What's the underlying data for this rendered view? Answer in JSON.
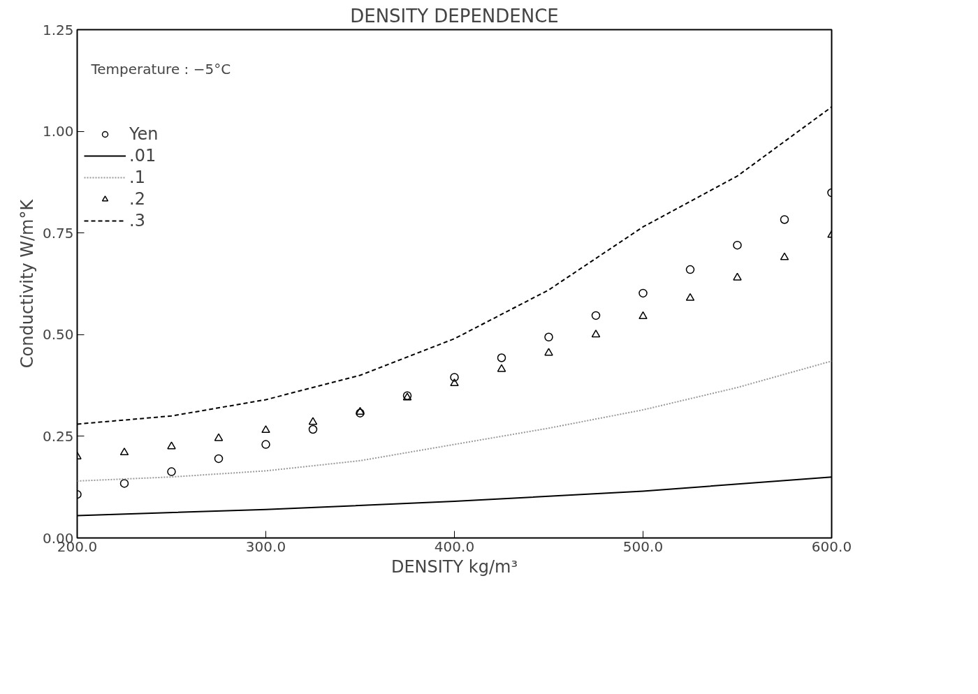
{
  "chart_data": {
    "type": "line",
    "title": "DENSITY DEPENDENCE",
    "xlabel": "DENSITY kg/m³",
    "ylabel": "Conductivity W/m°K",
    "annotations": [
      "Temperature : −5°C"
    ],
    "xlim": [
      200,
      600
    ],
    "ylim": [
      0,
      1.25
    ],
    "xticks": [
      {
        "value": 200,
        "label": "200.0"
      },
      {
        "value": 300,
        "label": "300.0"
      },
      {
        "value": 400,
        "label": "400.0"
      },
      {
        "value": 500,
        "label": "500.0"
      },
      {
        "value": 600,
        "label": "600.0"
      }
    ],
    "yticks": [
      {
        "value": 0,
        "label": "0.00"
      },
      {
        "value": 0.25,
        "label": "0.25"
      },
      {
        "value": 0.5,
        "label": "0.50"
      },
      {
        "value": 0.75,
        "label": "0.75"
      },
      {
        "value": 1,
        "label": "1.00"
      },
      {
        "value": 1.25,
        "label": "1.25"
      }
    ],
    "grid": false,
    "legend": "top left",
    "series": [
      {
        "name": "Yen",
        "type": "scatter",
        "marker": "circle",
        "color": "#000000",
        "x": [
          200,
          225,
          250,
          275,
          300,
          325,
          350,
          375,
          400,
          425,
          450,
          475,
          500,
          525,
          550,
          575,
          600
        ],
        "values": [
          0.107,
          0.134,
          0.163,
          0.195,
          0.23,
          0.267,
          0.307,
          0.35,
          0.395,
          0.443,
          0.494,
          0.547,
          0.602,
          0.66,
          0.72,
          0.783,
          0.849
        ]
      },
      {
        "name": ".01",
        "line_style": "solid",
        "color": "#000000",
        "x": [
          200,
          300,
          400,
          500,
          600
        ],
        "values": [
          0.055,
          0.07,
          0.09,
          0.115,
          0.15
        ]
      },
      {
        "name": ".1",
        "line_style": "dotted",
        "color": "#999999",
        "x": [
          200,
          250,
          300,
          350,
          400,
          450,
          500,
          550,
          600
        ],
        "values": [
          0.14,
          0.15,
          0.165,
          0.19,
          0.23,
          0.27,
          0.315,
          0.37,
          0.435
        ]
      },
      {
        "name": ".2",
        "type": "scatter",
        "marker": "triangle",
        "color": "#000000",
        "x": [
          200,
          225,
          250,
          275,
          300,
          325,
          350,
          375,
          400,
          425,
          450,
          475,
          500,
          525,
          550,
          575,
          600
        ],
        "values": [
          0.2,
          0.21,
          0.225,
          0.245,
          0.265,
          0.285,
          0.31,
          0.345,
          0.38,
          0.415,
          0.455,
          0.5,
          0.545,
          0.59,
          0.64,
          0.69,
          0.745
        ]
      },
      {
        "name": ".3",
        "line_style": "dashed",
        "color": "#000000",
        "x": [
          200,
          250,
          300,
          350,
          400,
          450,
          500,
          550,
          600
        ],
        "values": [
          0.28,
          0.3,
          0.34,
          0.4,
          0.49,
          0.61,
          0.765,
          0.89,
          1.06
        ]
      }
    ]
  }
}
